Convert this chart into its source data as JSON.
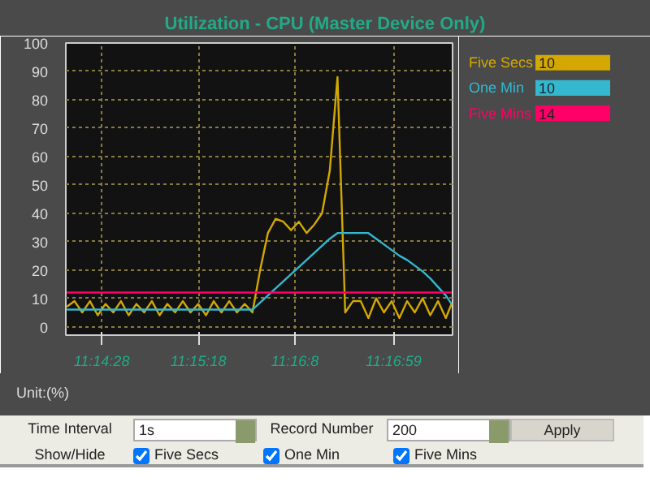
{
  "chart_data": {
    "type": "line",
    "title": "Utilization - CPU (Master Device Only)",
    "ylabel": "Unit:(%)",
    "x": [
      11.23611,
      11.23722,
      11.23833,
      11.23944,
      11.24056,
      11.24167,
      11.24278,
      11.24389,
      11.245,
      11.24611,
      11.24722,
      11.24833,
      11.24944,
      11.25056,
      11.25167,
      11.25278,
      11.25389,
      11.255,
      11.25611,
      11.25722,
      11.25833,
      11.25944,
      11.26056,
      11.26167,
      11.26278,
      11.26389,
      11.265,
      11.26611,
      11.26722,
      11.26833,
      11.26944,
      11.27056,
      11.27167,
      11.27278,
      11.27389,
      11.275,
      11.27611,
      11.27722,
      11.27833,
      11.27944,
      11.28056,
      11.28167,
      11.28278,
      11.28389,
      11.285,
      11.28611,
      11.28722,
      11.28833,
      11.28944,
      11.29056,
      11.29139
    ],
    "series": [
      {
        "name": "Five Secs",
        "color": "#d4a800",
        "values": [
          7,
          9,
          5,
          9,
          4,
          8,
          5,
          9,
          4,
          8,
          5,
          9,
          4,
          8,
          5,
          9,
          5,
          8,
          4,
          9,
          5,
          9,
          5,
          8,
          5,
          20,
          33,
          38,
          37,
          34,
          37,
          33,
          36,
          40,
          55,
          88,
          5,
          9,
          9,
          3,
          10,
          5,
          9,
          3,
          9,
          5,
          10,
          4,
          9,
          3,
          8
        ]
      },
      {
        "name": "One Min",
        "color": "#33b8d0",
        "values": [
          6,
          6,
          6,
          6,
          6,
          6,
          6,
          6,
          6,
          6,
          6,
          6,
          6,
          6,
          6,
          6,
          6,
          6,
          6,
          6,
          6,
          6,
          6,
          6,
          6,
          8.5,
          11,
          13.5,
          16,
          18.5,
          21,
          23.5,
          26,
          28.5,
          31,
          33,
          33,
          33,
          33,
          33,
          31,
          29,
          27,
          25,
          23.5,
          21.5,
          19.5,
          17,
          14,
          11,
          8
        ]
      },
      {
        "name": "Five Mins",
        "color": "#ff0066",
        "values": [
          12,
          12,
          12,
          12,
          12,
          12,
          12,
          12,
          12,
          12,
          12,
          12,
          12,
          12,
          12,
          12,
          12,
          12,
          12,
          12,
          12,
          12,
          12,
          12,
          12,
          12,
          12,
          12,
          12,
          12,
          12,
          12,
          12,
          12,
          12,
          12,
          12,
          12,
          12,
          12,
          12,
          12,
          12,
          12,
          12,
          12,
          12,
          12,
          12,
          12,
          12
        ]
      }
    ],
    "xlim": [
      11.23597,
      11.29153
    ],
    "xticks": [
      {
        "value": 11.241111,
        "label": "11:14:28"
      },
      {
        "value": 11.255,
        "label": "11:15:18"
      },
      {
        "value": 11.268889,
        "label": "11:16:8"
      },
      {
        "value": 11.283056,
        "label": "11:16:59"
      }
    ],
    "ylim": [
      -3,
      100
    ],
    "yticks": [
      0,
      10,
      20,
      30,
      40,
      50,
      60,
      70,
      80,
      90,
      100
    ],
    "grid": true,
    "legend": "top right",
    "marker": "none",
    "line_style": "solid",
    "annotations": [
      "10",
      "10",
      "14",
      "Time Interval",
      "1s",
      "Record Number",
      "200",
      "Apply",
      "Show/Hide",
      "Five Secs",
      "One Min",
      "Five Mins"
    ]
  }
}
